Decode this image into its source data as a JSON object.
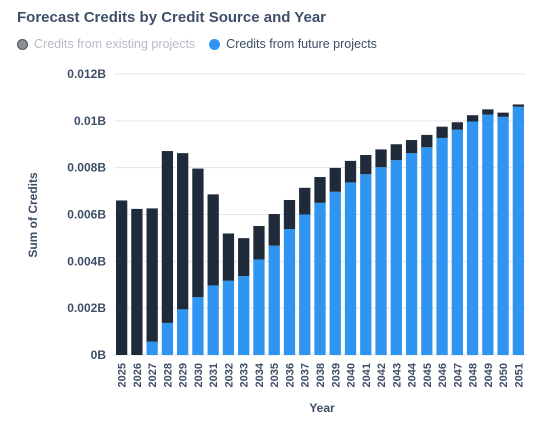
{
  "chart_data": {
    "type": "bar",
    "stacked": true,
    "title": "Forecast Credits by Credit Source and Year",
    "xlabel": "Year",
    "ylabel": "Sum of Credits",
    "ylim": [
      0,
      0.012
    ],
    "yticks": [
      "0B",
      "0.002B",
      "0.004B",
      "0.006B",
      "0.008B",
      "0.01B",
      "0.012B"
    ],
    "grid": true,
    "legend_position": "top-left",
    "categories": [
      "2025",
      "2026",
      "2027",
      "2028",
      "2029",
      "2030",
      "2031",
      "2032",
      "2033",
      "2034",
      "2035",
      "2036",
      "2037",
      "2038",
      "2039",
      "2040",
      "2041",
      "2042",
      "2043",
      "2044",
      "2045",
      "2046",
      "2047",
      "2048",
      "2049",
      "2050",
      "2051"
    ],
    "series": [
      {
        "name": "Credits from future projects",
        "color": "#2f95f0",
        "legend_state": "active",
        "values": [
          0,
          0,
          0.00057,
          0.00137,
          0.00195,
          0.00247,
          0.00297,
          0.00317,
          0.00337,
          0.00408,
          0.00467,
          0.00538,
          0.006,
          0.0065,
          0.00697,
          0.00737,
          0.00772,
          0.00802,
          0.00832,
          0.00862,
          0.00887,
          0.00927,
          0.00962,
          0.00997,
          0.01027,
          0.01017,
          0.0106
        ]
      },
      {
        "name": "Credits from existing projects",
        "color": "#1f2b3a",
        "legend_state": "inactive",
        "values": [
          0.0066,
          0.00624,
          0.00569,
          0.00734,
          0.00667,
          0.00549,
          0.00389,
          0.00202,
          0.00162,
          0.00143,
          0.00135,
          0.00124,
          0.00114,
          0.0011,
          0.00102,
          0.00092,
          0.00082,
          0.00076,
          0.00068,
          0.00056,
          0.00053,
          0.00048,
          0.00032,
          0.00027,
          0.00022,
          0.00018,
          0.0001
        ]
      }
    ]
  }
}
